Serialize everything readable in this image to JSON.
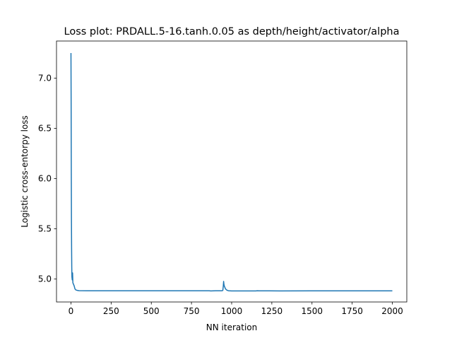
{
  "chart_data": {
    "type": "line",
    "title": "Loss plot: PRDALL.5-16.tanh.0.05 as depth/height/activator/alpha",
    "xlabel": "NN iteration",
    "ylabel": "Logistic cross-entorpy loss",
    "xlim": [
      -90,
      2090
    ],
    "ylim": [
      4.77,
      7.37
    ],
    "xticks": [
      0,
      250,
      500,
      750,
      1000,
      1250,
      1500,
      1750,
      2000
    ],
    "xtick_labels": [
      "0",
      "250",
      "500",
      "750",
      "1000",
      "1250",
      "1500",
      "1750",
      "2000"
    ],
    "yticks": [
      5.0,
      5.5,
      6.0,
      6.5,
      7.0
    ],
    "ytick_labels": [
      "5.0",
      "5.5",
      "6.0",
      "6.5",
      "7.0"
    ],
    "grid": false,
    "legend": "none",
    "series": [
      {
        "color": "#1f77b4",
        "x": [
          0,
          1,
          2,
          3,
          4,
          5,
          6,
          8,
          10,
          12,
          15,
          20,
          25,
          30,
          40,
          50,
          100,
          200,
          300,
          500,
          700,
          860,
          870,
          900,
          940,
          945,
          948,
          950,
          952,
          955,
          958,
          962,
          970,
          980,
          1000,
          1100,
          1150,
          1160,
          1170,
          1200,
          1300,
          1500,
          1700,
          1900,
          2000
        ],
        "y": [
          7.25,
          6.8,
          6.1,
          5.6,
          5.3,
          5.12,
          5.02,
          4.99,
          5.06,
          4.96,
          4.95,
          4.93,
          4.9,
          4.89,
          4.885,
          4.883,
          4.882,
          4.882,
          4.882,
          4.882,
          4.882,
          4.882,
          4.88,
          4.882,
          4.882,
          4.885,
          4.93,
          4.975,
          4.945,
          4.925,
          4.915,
          4.9,
          4.888,
          4.882,
          4.88,
          4.88,
          4.88,
          4.882,
          4.881,
          4.881,
          4.88,
          4.881,
          4.881,
          4.881,
          4.881
        ]
      }
    ]
  }
}
